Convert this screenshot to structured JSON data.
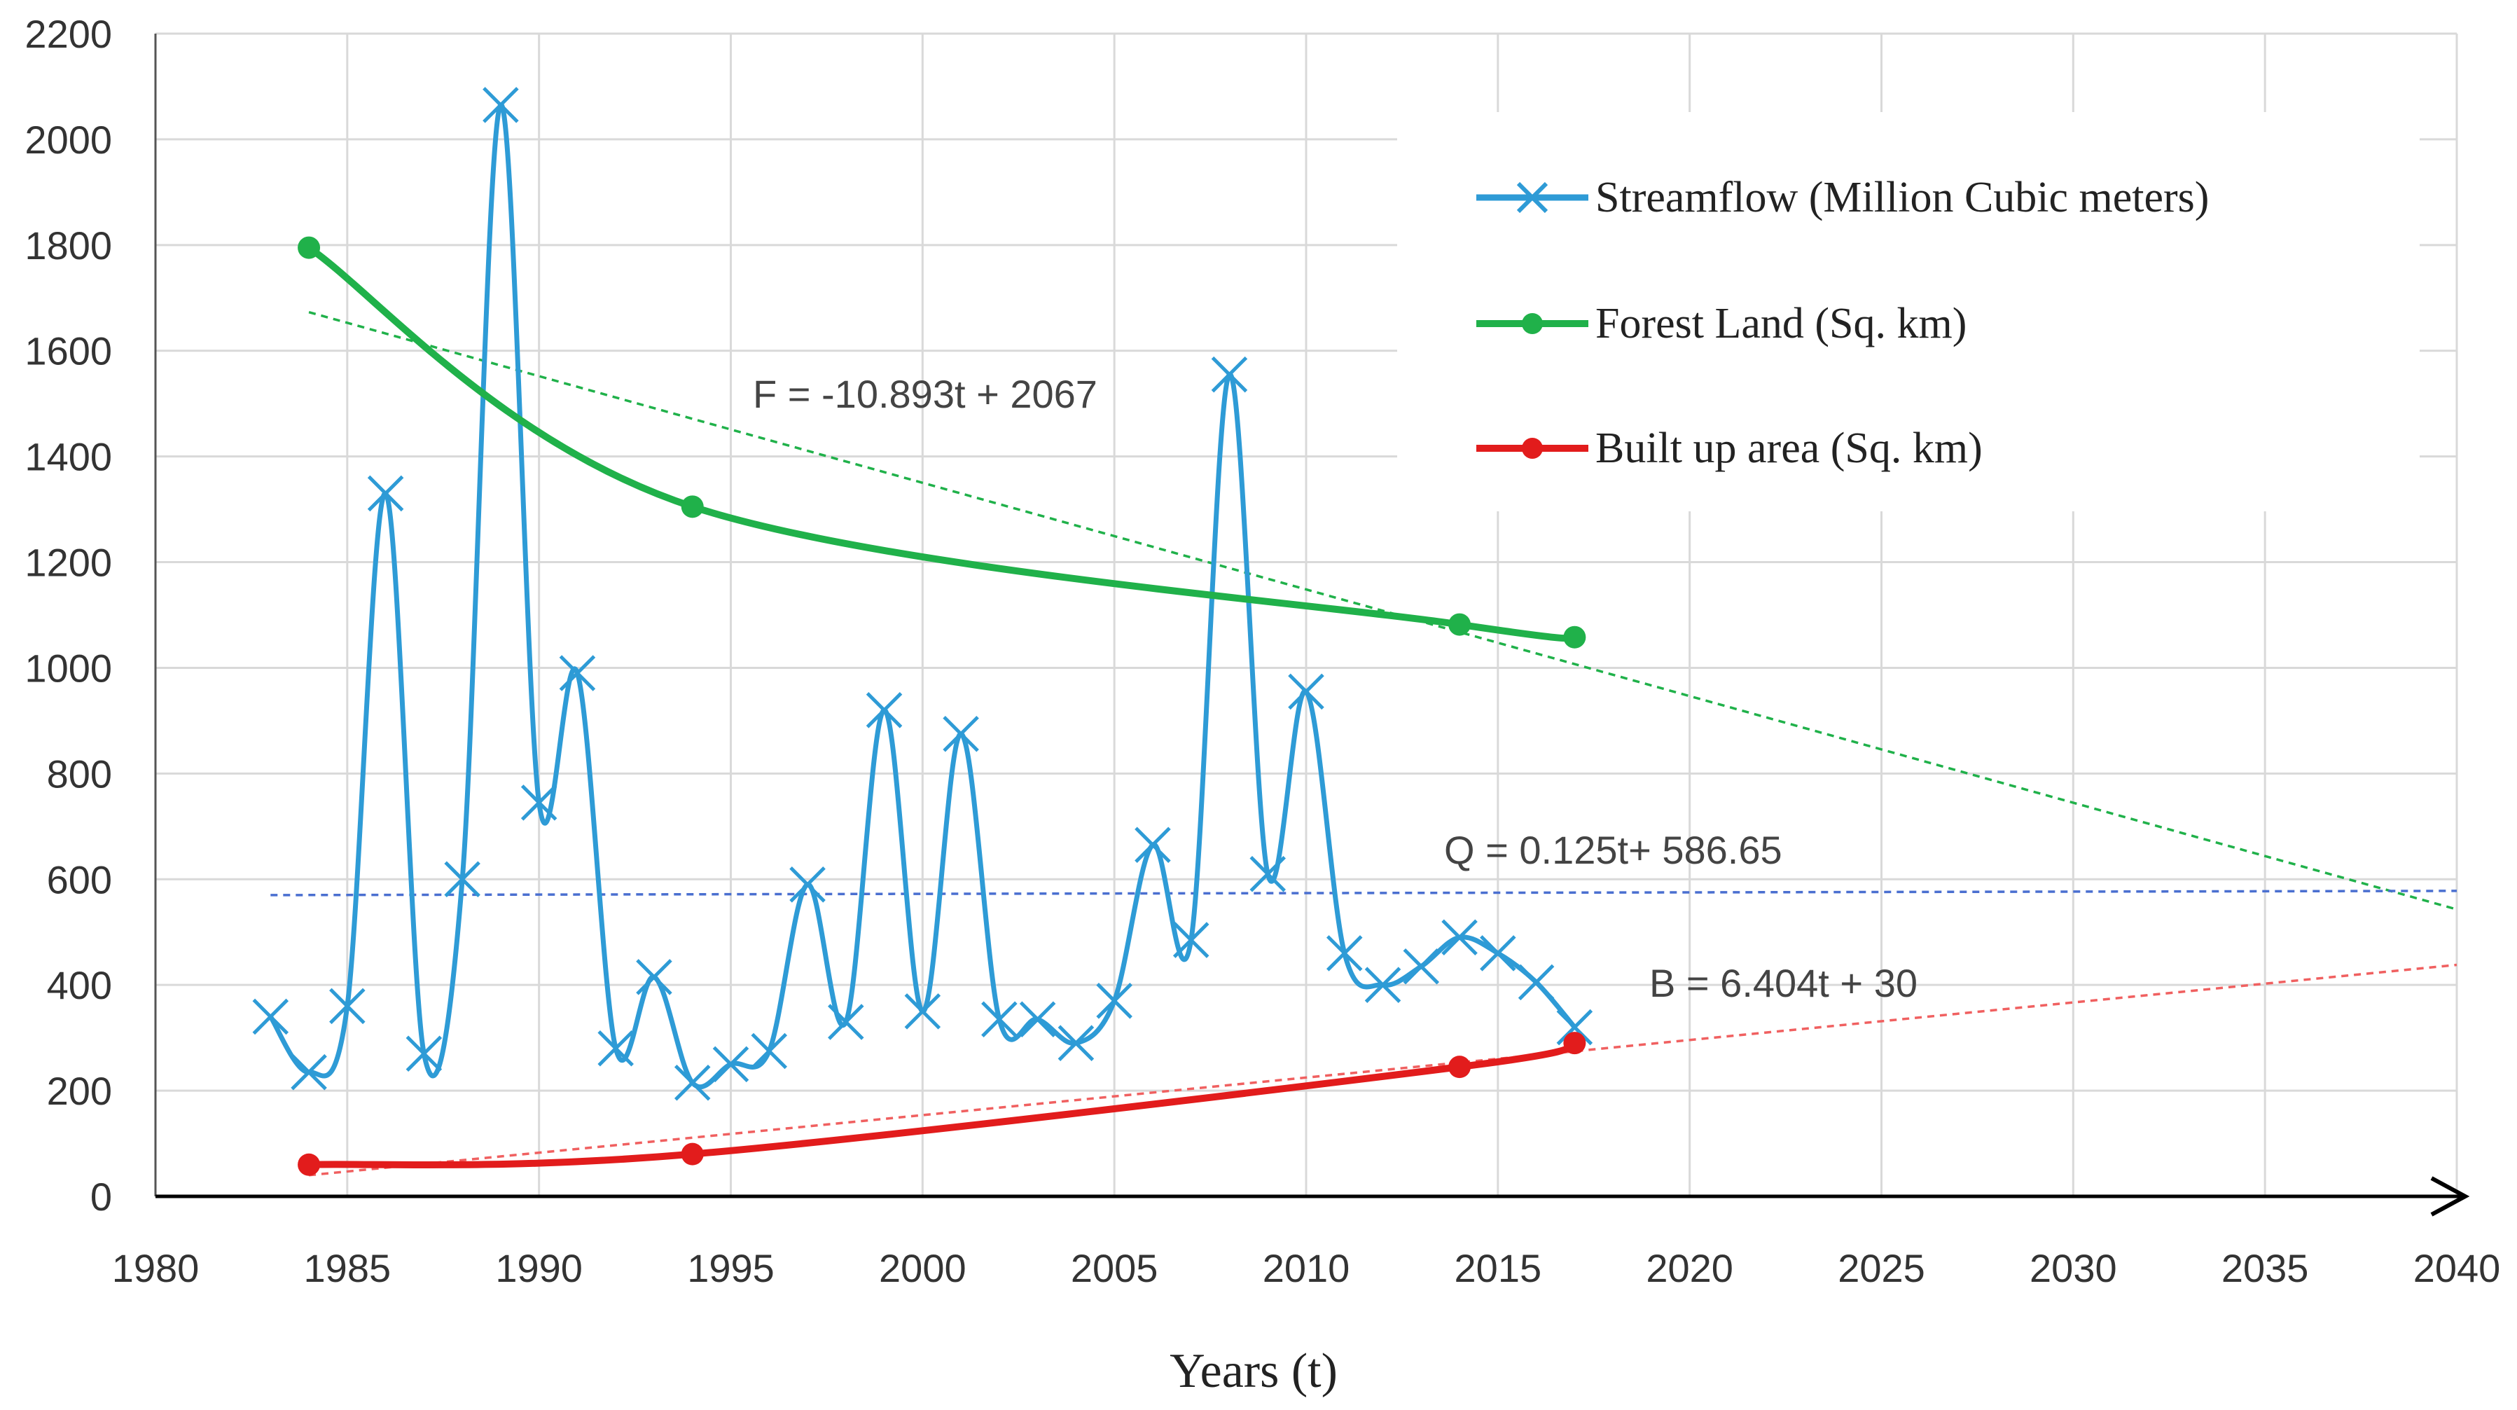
{
  "chart_data": {
    "type": "line",
    "title": "",
    "xlabel": "Years (t)",
    "ylabel": "",
    "xlim": [
      1980,
      2040
    ],
    "ylim": [
      0,
      2200
    ],
    "x_ticks": [
      1980,
      1985,
      1990,
      1995,
      2000,
      2005,
      2010,
      2015,
      2020,
      2025,
      2030,
      2035,
      2040
    ],
    "y_ticks": [
      0,
      200,
      400,
      600,
      800,
      1000,
      1200,
      1400,
      1600,
      1800,
      2000,
      2200
    ],
    "grid": true,
    "legend_position": "top-right",
    "series": [
      {
        "name": "Streamflow (Million Cubic meters)",
        "color": "#2e9bd6",
        "marker": "x",
        "x": [
          1983,
          1984,
          1985,
          1986,
          1987,
          1988,
          1989,
          1990,
          1991,
          1992,
          1993,
          1994,
          1995,
          1996,
          1997,
          1998,
          1999,
          2000,
          2001,
          2002,
          2003,
          2004,
          2005,
          2006,
          2007,
          2008,
          2009,
          2010,
          2011,
          2012,
          2013,
          2014,
          2015,
          2016,
          2017
        ],
        "values": [
          340,
          235,
          360,
          1330,
          270,
          600,
          2065,
          745,
          990,
          280,
          415,
          215,
          250,
          275,
          590,
          330,
          920,
          350,
          875,
          335,
          335,
          290,
          370,
          665,
          485,
          1555,
          610,
          955,
          460,
          400,
          435,
          490,
          460,
          405,
          320
        ]
      },
      {
        "name": "Forest Land (Sq. km)",
        "color": "#20b14a",
        "marker": "circle",
        "x": [
          1984,
          1994,
          2014,
          2017
        ],
        "values": [
          1795,
          1305,
          1082,
          1058
        ]
      },
      {
        "name": "Built up area (Sq. km)",
        "color": "#e21c1c",
        "marker": "circle",
        "x": [
          1984,
          1994,
          2014,
          2017
        ],
        "values": [
          60,
          80,
          245,
          290
        ]
      }
    ],
    "trendlines": [
      {
        "label": "F = -10.893t + 2067",
        "color": "#20b14a",
        "x": [
          1984,
          2040
        ],
        "values": [
          1673,
          543
        ]
      },
      {
        "label": "Q = 0.125t+ 586.65",
        "color": "#4a6fd0",
        "x": [
          1983,
          2040
        ],
        "values": [
          570,
          578
        ]
      },
      {
        "label": "B = 6.404t + 30",
        "color": "#f06060",
        "x": [
          1984,
          2040
        ],
        "values": [
          40,
          438
        ]
      }
    ]
  }
}
